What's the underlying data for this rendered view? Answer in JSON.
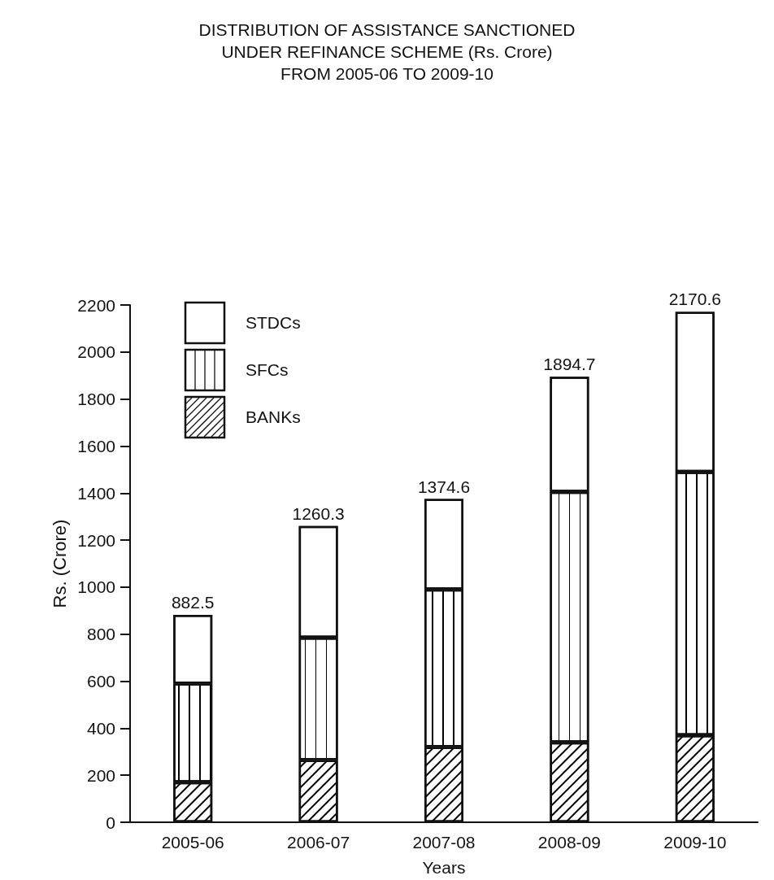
{
  "chart_data": {
    "type": "bar",
    "title": "DISTRIBUTION OF ASSISTANCE SANCTIONED\nUNDER REFINANCE SCHEME (Rs. Crore)\nFROM 2005-06 TO 2009-10",
    "xlabel": "Years",
    "ylabel": "Rs. (Crore)",
    "categories": [
      "2005-06",
      "2006-07",
      "2007-08",
      "2008-09",
      "2009-10"
    ],
    "stacked": true,
    "series": [
      {
        "name": "BANKs",
        "color": "#ffffff",
        "values": [
          170,
          265,
          320,
          340,
          370
        ]
      },
      {
        "name": "SFCs",
        "color": "#ffffff",
        "values": [
          420,
          520,
          670,
          1065,
          1120
        ]
      },
      {
        "name": "STDCs",
        "color": "#ffffff",
        "values": [
          292.5,
          475.3,
          384.6,
          489.7,
          680.6
        ]
      }
    ],
    "totals": [
      "882.5",
      "1260.3",
      "1374.6",
      "1894.7",
      "2170.6"
    ],
    "ylim": [
      0,
      2200
    ],
    "yticks": [
      0,
      200,
      400,
      600,
      800,
      1000,
      1200,
      1400,
      1600,
      1800,
      2000,
      2200
    ],
    "grid": false,
    "legend": "top left"
  }
}
